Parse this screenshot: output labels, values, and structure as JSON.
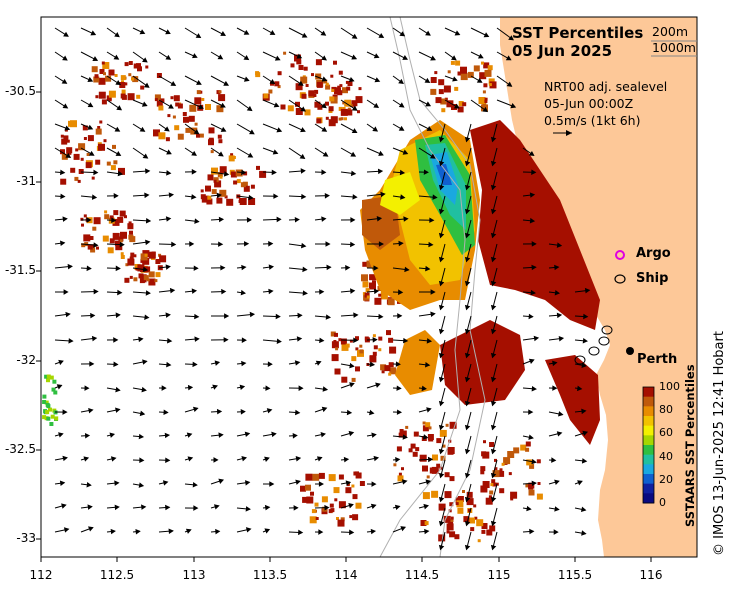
{
  "title": {
    "line1": "SST Percentiles",
    "line2": "05 Jun 2025"
  },
  "isobaths": {
    "shallow": "200m",
    "deep": "1000m"
  },
  "current_info": {
    "line1": "NRT00 adj. sealevel",
    "line2": "05-Jun 00:00Z",
    "line3": "0.5m/s (1kt 6h)"
  },
  "legend": {
    "argo": "Argo",
    "ship": "Ship"
  },
  "place": {
    "city": "Perth"
  },
  "axes": {
    "lon_ticks": [
      "112",
      "112.5",
      "113",
      "113.5",
      "114",
      "114.5",
      "115",
      "115.5",
      "116"
    ],
    "lat_ticks": [
      "-30.5",
      "-31",
      "-31.5",
      "-32",
      "-32.5",
      "-33"
    ]
  },
  "colorbar": {
    "label": "SSTAARS SST Percentiles",
    "ticks": [
      "100",
      "80",
      "60",
      "40",
      "20",
      "0"
    ],
    "colors": [
      "#a50f00",
      "#c0590a",
      "#e88c00",
      "#f2c200",
      "#f3f000",
      "#a6d600",
      "#2fbf40",
      "#20c0a0",
      "#1aa8e0",
      "#1060d0",
      "#1020a0",
      "#0a0a80"
    ]
  },
  "credit": "© IMOS 13-Jun-2025 12:41 Hobart",
  "colors": {
    "land": "#fdc898",
    "ocean": "#ffffff",
    "hot": "#a50f00"
  }
}
